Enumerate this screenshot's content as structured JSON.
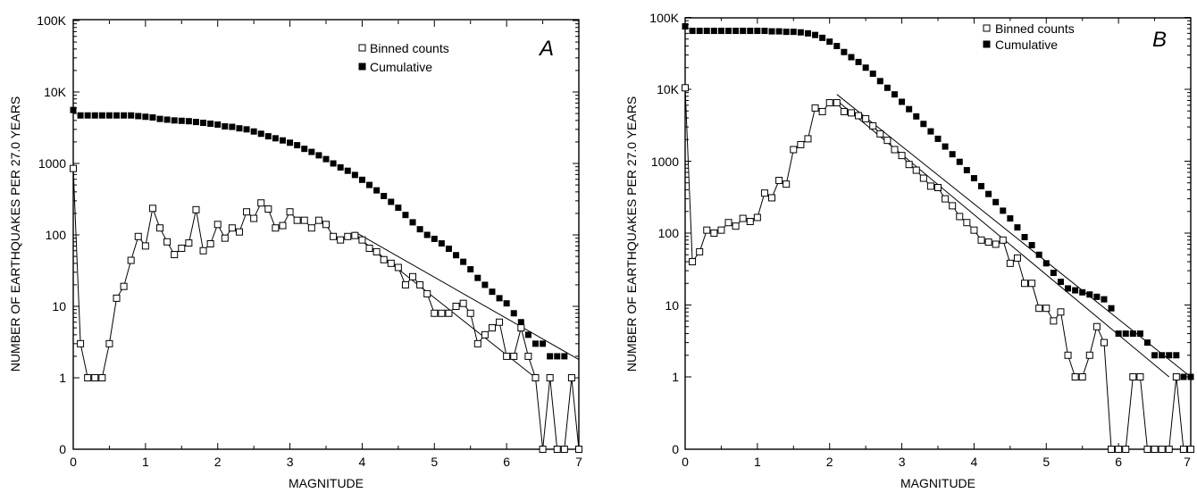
{
  "chart_data": [
    {
      "type": "scatter",
      "panel_label": "A",
      "xlabel": "MAGNITUDE",
      "ylabel": "NUMBER OF EARTHQUAKES PER 27.0 YEARS",
      "xlim": [
        0,
        7
      ],
      "x_ticks": [
        "0",
        "1",
        "2",
        "3",
        "4",
        "5",
        "6",
        "7"
      ],
      "y_scale": "log, with a 0 row below 1",
      "y_ticks": [
        "0",
        "1",
        "10",
        "100",
        "1000",
        "10K",
        "100K"
      ],
      "legend_position": "top-right",
      "series": [
        {
          "name": "Binned counts",
          "marker": "open square, connected by line",
          "x": [
            0.0,
            0.1,
            0.2,
            0.3,
            0.4,
            0.5,
            0.6,
            0.7,
            0.8,
            0.9,
            1.0,
            1.1,
            1.2,
            1.3,
            1.4,
            1.5,
            1.6,
            1.7,
            1.8,
            1.9,
            2.0,
            2.1,
            2.2,
            2.3,
            2.4,
            2.5,
            2.6,
            2.7,
            2.8,
            2.9,
            3.0,
            3.1,
            3.2,
            3.3,
            3.4,
            3.5,
            3.6,
            3.7,
            3.8,
            3.9,
            4.0,
            4.1,
            4.2,
            4.3,
            4.4,
            4.5,
            4.6,
            4.7,
            4.8,
            4.9,
            5.0,
            5.1,
            5.2,
            5.3,
            5.4,
            5.5,
            5.6,
            5.7,
            5.8,
            5.9,
            6.0,
            6.1,
            6.2,
            6.3,
            6.4,
            6.5,
            6.6,
            6.7,
            6.8,
            6.9,
            7.0
          ],
          "y": [
            850,
            3,
            1,
            1,
            1,
            3,
            13,
            19,
            44,
            95,
            70,
            235,
            125,
            80,
            53,
            65,
            77,
            225,
            60,
            75,
            140,
            90,
            125,
            110,
            210,
            170,
            280,
            230,
            125,
            135,
            210,
            160,
            160,
            125,
            160,
            140,
            95,
            85,
            95,
            98,
            85,
            65,
            58,
            45,
            40,
            35,
            20,
            26,
            20,
            15,
            8,
            8,
            8,
            10,
            11,
            8,
            3,
            4,
            5,
            6,
            2,
            2,
            5,
            2,
            1,
            0,
            1,
            0,
            0,
            1,
            0
          ]
        },
        {
          "name": "Cumulative",
          "marker": "filled square",
          "x": [
            0.0,
            0.1,
            0.2,
            0.3,
            0.4,
            0.5,
            0.6,
            0.7,
            0.8,
            0.9,
            1.0,
            1.1,
            1.2,
            1.3,
            1.4,
            1.5,
            1.6,
            1.7,
            1.8,
            1.9,
            2.0,
            2.1,
            2.2,
            2.3,
            2.4,
            2.5,
            2.6,
            2.7,
            2.8,
            2.9,
            3.0,
            3.1,
            3.2,
            3.3,
            3.4,
            3.5,
            3.6,
            3.7,
            3.8,
            3.9,
            4.0,
            4.1,
            4.2,
            4.3,
            4.4,
            4.5,
            4.6,
            4.7,
            4.8,
            4.9,
            5.0,
            5.1,
            5.2,
            5.3,
            5.4,
            5.5,
            5.6,
            5.7,
            5.8,
            5.9,
            6.0,
            6.1,
            6.2,
            6.3,
            6.4,
            6.5,
            6.6,
            6.7,
            6.8,
            6.9,
            7.0
          ],
          "y": [
            5600,
            4700,
            4700,
            4700,
            4700,
            4700,
            4700,
            4700,
            4700,
            4600,
            4500,
            4400,
            4200,
            4100,
            4000,
            3950,
            3900,
            3800,
            3700,
            3600,
            3500,
            3300,
            3250,
            3100,
            3000,
            2800,
            2600,
            2400,
            2250,
            2100,
            1950,
            1800,
            1600,
            1450,
            1300,
            1150,
            1000,
            880,
            790,
            690,
            590,
            500,
            420,
            350,
            290,
            240,
            190,
            150,
            120,
            100,
            88,
            76,
            64,
            52,
            42,
            33,
            25,
            20,
            16,
            13,
            11,
            8,
            6,
            4,
            3,
            3,
            2,
            2,
            2,
            1,
            0
          ]
        }
      ],
      "fit_lines": [
        {
          "x": [
            3.9,
            7.0
          ],
          "y": [
            110,
            1.8
          ]
        },
        {
          "x": [
            3.9,
            6.4
          ],
          "y": [
            100,
            1.0
          ]
        }
      ]
    },
    {
      "type": "scatter",
      "panel_label": "B",
      "xlabel": "MAGNITUDE",
      "ylabel": "NUMBER OF EARTHQUAKES PER 27.0 YEARS",
      "xlim": [
        0,
        7
      ],
      "x_ticks": [
        "0",
        "1",
        "2",
        "3",
        "4",
        "5",
        "6",
        "7"
      ],
      "y_scale": "log, with a 0 row below 1",
      "y_ticks": [
        "0",
        "1",
        "10",
        "100",
        "1000",
        "10K",
        "100K"
      ],
      "legend_position": "top-right",
      "series": [
        {
          "name": "Binned counts",
          "marker": "open square, connected by line",
          "x": [
            0.0,
            0.1,
            0.2,
            0.3,
            0.4,
            0.5,
            0.6,
            0.7,
            0.8,
            0.9,
            1.0,
            1.1,
            1.2,
            1.3,
            1.4,
            1.5,
            1.6,
            1.7,
            1.8,
            1.9,
            2.0,
            2.1,
            2.2,
            2.3,
            2.4,
            2.5,
            2.6,
            2.7,
            2.8,
            2.9,
            3.0,
            3.1,
            3.2,
            3.3,
            3.4,
            3.5,
            3.6,
            3.7,
            3.8,
            3.9,
            4.0,
            4.1,
            4.2,
            4.3,
            4.4,
            4.5,
            4.6,
            4.7,
            4.8,
            4.9,
            5.0,
            5.1,
            5.2,
            5.3,
            5.4,
            5.5,
            5.6,
            5.7,
            5.8,
            5.9,
            6.0,
            6.1,
            6.2,
            6.3,
            6.4,
            6.5,
            6.6,
            6.7,
            6.8,
            6.9,
            7.0
          ],
          "y": [
            10500,
            40,
            55,
            110,
            100,
            110,
            140,
            125,
            160,
            145,
            165,
            360,
            310,
            540,
            480,
            1450,
            1700,
            2050,
            5500,
            4900,
            6500,
            6500,
            4900,
            4700,
            4300,
            3900,
            3100,
            2400,
            1950,
            1450,
            1200,
            900,
            750,
            580,
            450,
            430,
            300,
            240,
            170,
            140,
            110,
            80,
            75,
            70,
            80,
            38,
            45,
            20,
            20,
            9,
            9,
            6,
            8,
            2,
            1,
            1,
            2,
            5,
            3,
            0,
            0,
            0,
            1,
            1,
            0,
            0,
            0,
            0,
            1,
            0,
            0
          ]
        },
        {
          "name": "Cumulative",
          "marker": "filled square",
          "x": [
            0.0,
            0.1,
            0.2,
            0.3,
            0.4,
            0.5,
            0.6,
            0.7,
            0.8,
            0.9,
            1.0,
            1.1,
            1.2,
            1.3,
            1.4,
            1.5,
            1.6,
            1.7,
            1.8,
            1.9,
            2.0,
            2.1,
            2.2,
            2.3,
            2.4,
            2.5,
            2.6,
            2.7,
            2.8,
            2.9,
            3.0,
            3.1,
            3.2,
            3.3,
            3.4,
            3.5,
            3.6,
            3.7,
            3.8,
            3.9,
            4.0,
            4.1,
            4.2,
            4.3,
            4.4,
            4.5,
            4.6,
            4.7,
            4.8,
            4.9,
            5.0,
            5.1,
            5.2,
            5.3,
            5.4,
            5.5,
            5.6,
            5.7,
            5.8,
            5.9,
            6.0,
            6.1,
            6.2,
            6.3,
            6.4,
            6.5,
            6.6,
            6.7,
            6.8,
            6.9,
            7.0
          ],
          "y": [
            75000,
            65000,
            65000,
            65000,
            65000,
            65000,
            65000,
            65000,
            65000,
            65000,
            65000,
            65000,
            64000,
            64000,
            63000,
            63000,
            62000,
            60000,
            57000,
            52000,
            46000,
            40000,
            33000,
            28000,
            24000,
            20000,
            16500,
            13000,
            10500,
            8500,
            6700,
            5300,
            4200,
            3300,
            2600,
            2050,
            1600,
            1250,
            980,
            750,
            580,
            450,
            350,
            270,
            205,
            160,
            120,
            88,
            68,
            50,
            38,
            28,
            21,
            17,
            16,
            15,
            14,
            13,
            12,
            9,
            4,
            4,
            4,
            4,
            3,
            2,
            2,
            2,
            2,
            1,
            1
          ]
        }
      ],
      "fit_lines": [
        {
          "x": [
            2.1,
            7.0
          ],
          "y": [
            8500,
            1.0
          ]
        },
        {
          "x": [
            2.1,
            6.7
          ],
          "y": [
            7000,
            1.0
          ]
        }
      ]
    }
  ]
}
